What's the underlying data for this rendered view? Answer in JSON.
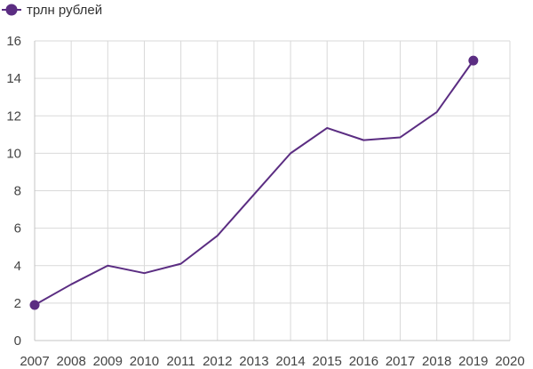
{
  "chart_data": {
    "type": "line",
    "title": "",
    "xlabel": "",
    "ylabel": "",
    "x_ticks": [
      "2007",
      "2008",
      "2009",
      "2010",
      "2011",
      "2012",
      "2013",
      "2014",
      "2015",
      "2016",
      "2017",
      "2018",
      "2019",
      "2020"
    ],
    "y_ticks": [
      "0",
      "2",
      "4",
      "6",
      "8",
      "10",
      "12",
      "14",
      "16"
    ],
    "xlim": [
      2007,
      2020
    ],
    "ylim": [
      0,
      16
    ],
    "grid": true,
    "legend_position": "top-left",
    "series": [
      {
        "name": "трлн рублей",
        "color": "#5b2d82",
        "points": [
          {
            "x": 2007,
            "y": 1.9
          },
          {
            "x": 2008,
            "y": 3.0
          },
          {
            "x": 2009,
            "y": 4.0
          },
          {
            "x": 2010,
            "y": 3.6
          },
          {
            "x": 2011,
            "y": 4.1
          },
          {
            "x": 2012,
            "y": 5.6
          },
          {
            "x": 2013,
            "y": 7.8
          },
          {
            "x": 2014,
            "y": 10.0
          },
          {
            "x": 2015,
            "y": 11.35
          },
          {
            "x": 2016,
            "y": 10.7
          },
          {
            "x": 2017,
            "y": 10.85
          },
          {
            "x": 2018,
            "y": 12.2
          },
          {
            "x": 2019,
            "y": 14.95
          }
        ],
        "markers_at": [
          2007,
          2019
        ]
      }
    ]
  }
}
